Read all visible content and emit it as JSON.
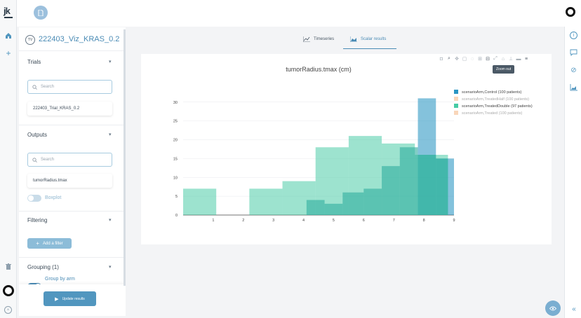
{
  "app": {
    "logo": "jk"
  },
  "project": {
    "badge": "TV",
    "name": "222403_Viz_KRAS_0.2"
  },
  "sections": {
    "trials": {
      "title": "Trials",
      "search_placeholder": "Search",
      "items": [
        "222403_Trial_KRAS_0.2"
      ]
    },
    "outputs": {
      "title": "Outputs",
      "search_placeholder": "Search",
      "items": [
        "tumorRadius.tmax"
      ],
      "boxplot_label": "Boxplot",
      "boxplot_on": false
    },
    "filtering": {
      "title": "Filtering",
      "add_filter_label": "Add a filter"
    },
    "grouping": {
      "title": "Grouping (1)",
      "group_by_arm_label": "Group by arm",
      "group_by_arm_on": true
    }
  },
  "update_button_label": "Update results",
  "tabs": [
    {
      "label": "Timeseries",
      "active": false,
      "icon": "line-chart-icon"
    },
    {
      "label": "Scalar results",
      "active": true,
      "icon": "area-chart-icon"
    }
  ],
  "tooltip": "Zoom out",
  "colors": {
    "accent": "#5196bf",
    "control": "#1f8fc0",
    "treated_half": "#f4b581",
    "treated_double": "#3cc8a0",
    "treated": "#f4b581"
  },
  "chart_data": {
    "type": "bar",
    "title": "tumorRadius.tmax (cm)",
    "xlabel": "",
    "ylabel": "",
    "xlim": [
      0,
      9
    ],
    "ylim": [
      0,
      32
    ],
    "x_ticks": [
      1,
      2,
      3,
      4,
      5,
      6,
      7,
      8,
      9
    ],
    "y_ticks": [
      0,
      5,
      10,
      15,
      20,
      25,
      30
    ],
    "legend_position": "top-right",
    "series": [
      {
        "name": "scenarioArm,Control (100 patients)",
        "color": "#1f8fc0",
        "opacity": 0.55,
        "visible": true,
        "bins": [
          [
            7.8,
            8.4,
            31
          ],
          [
            8.4,
            9.0,
            15
          ]
        ]
      },
      {
        "name": "scenarioArm,TreatedHalf (100 patients)",
        "color": "#f4b581",
        "opacity": 0.55,
        "visible": false,
        "bins": []
      },
      {
        "name": "scenarioArm,TreatedDouble (97 patients)",
        "color": "#3cc8a0",
        "opacity": 0.5,
        "visible": true,
        "bins": [
          [
            0,
            1.1,
            7
          ],
          [
            2.2,
            3.3,
            7
          ],
          [
            3.3,
            4.4,
            9
          ],
          [
            4.4,
            5.5,
            18
          ],
          [
            5.5,
            6.6,
            21
          ],
          [
            6.6,
            7.7,
            19
          ],
          [
            7.7,
            8.8,
            16
          ]
        ]
      },
      {
        "name": "scenarioArm,Treated (100 patients)",
        "color": "#f4b581",
        "opacity": 0.55,
        "visible": false,
        "bins": []
      }
    ],
    "overlap_bins": [
      [
        4.1,
        4.7,
        4
      ],
      [
        4.7,
        5.3,
        3
      ],
      [
        5.3,
        6.0,
        6
      ],
      [
        6.0,
        6.6,
        7
      ],
      [
        6.6,
        7.2,
        13
      ],
      [
        7.2,
        7.8,
        18
      ],
      [
        7.8,
        8.4,
        16
      ],
      [
        8.4,
        8.8,
        15
      ]
    ]
  }
}
